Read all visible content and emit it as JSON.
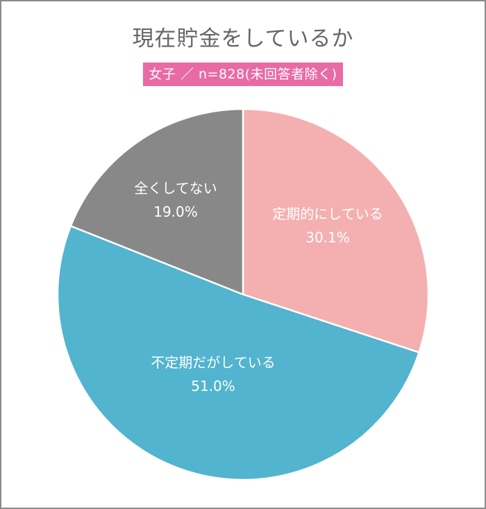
{
  "title": "現在貯金をしているか",
  "subtitle": "女子 ／ n=828(未回答者除く)",
  "colors": {
    "badge": "#E96BA5",
    "regular": "#F4B0B1",
    "irregular": "#52B4CE",
    "none": "#888888",
    "title_text": "#666666",
    "frame": "#8A8A8A"
  },
  "slices": [
    {
      "label": "定期的にしている",
      "value_text": "30.1%"
    },
    {
      "label": "不定期だがしている",
      "value_text": "51.0%"
    },
    {
      "label": "全くしてない",
      "value_text": "19.0%"
    }
  ],
  "chart_data": {
    "type": "pie",
    "title": "現在貯金をしているか",
    "subtitle": "女子 ／ n=828(未回答者除く)",
    "categories": [
      "定期的にしている",
      "不定期だがしている",
      "全くしてない"
    ],
    "values": [
      30.1,
      51.0,
      19.0
    ],
    "colors": [
      "#F4B0B1",
      "#52B4CE",
      "#888888"
    ],
    "start_angle": "12 o'clock",
    "direction": "clockwise",
    "legend": "none (labels inside slices)",
    "units": "%"
  }
}
